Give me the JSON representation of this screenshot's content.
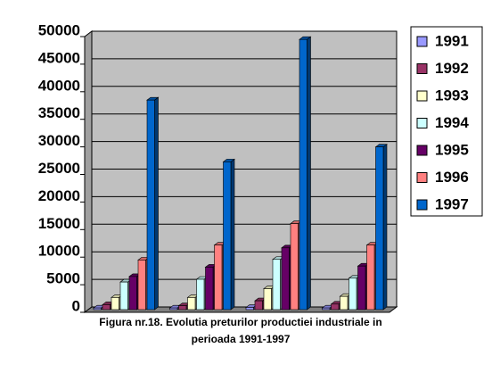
{
  "chart_data": {
    "type": "bar",
    "title": "Figura nr.18. Evolutia preturilor productiei industriale in perioada 1991-1997",
    "categories": [
      null,
      null,
      null,
      null
    ],
    "series": [
      {
        "name": "1991",
        "color": "#9999ff",
        "values": [
          300,
          300,
          400,
          300
        ]
      },
      {
        "name": "1992",
        "color": "#993366",
        "values": [
          900,
          700,
          1600,
          1000
        ]
      },
      {
        "name": "1993",
        "color": "#ffffcc",
        "values": [
          2200,
          2200,
          3800,
          2400
        ]
      },
      {
        "name": "1994",
        "color": "#ccffff",
        "values": [
          5000,
          5500,
          9100,
          5700
        ]
      },
      {
        "name": "1995",
        "color": "#660066",
        "values": [
          6000,
          7700,
          11200,
          7900
        ]
      },
      {
        "name": "1996",
        "color": "#ff8080",
        "values": [
          9000,
          11700,
          15600,
          11700
        ]
      },
      {
        "name": "1997",
        "color": "#0066cc",
        "values": [
          38000,
          26800,
          49000,
          29500
        ]
      }
    ],
    "ylim": [
      0,
      50000
    ],
    "yticks": [
      0,
      5000,
      10000,
      15000,
      20000,
      25000,
      30000,
      35000,
      40000,
      45000,
      50000
    ],
    "grid": true,
    "legend": "right"
  }
}
